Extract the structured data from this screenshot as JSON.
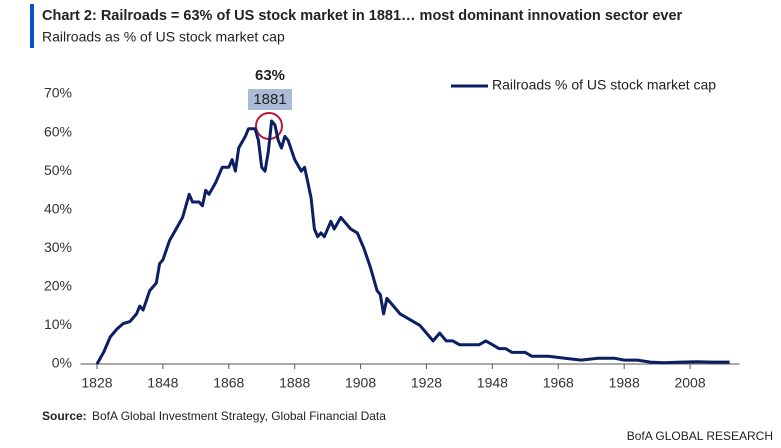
{
  "chart_data": {
    "type": "line",
    "title": "Chart 2: Railroads = 63% of US stock market in 1881… most dominant innovation sector ever",
    "subtitle": "Railroads as % of US stock market cap",
    "annotation": {
      "value_text": "63%",
      "year_text": "1881"
    },
    "source_label": "Source:",
    "source": "BofA Global Investment Strategy, Global Financial Data",
    "footer": "BofA GLOBAL RESEARCH",
    "legend": "upper right",
    "grid": false,
    "xlim": [
      1823,
      2023
    ],
    "ylim": [
      0,
      75
    ],
    "xticks": [
      1828,
      1848,
      1868,
      1888,
      1908,
      1928,
      1948,
      1968,
      1988,
      2008
    ],
    "yticks": [
      {
        "value": 0,
        "label": "0%"
      },
      {
        "value": 10,
        "label": "10%"
      },
      {
        "value": 20,
        "label": "20%"
      },
      {
        "value": 30,
        "label": "30%"
      },
      {
        "value": 40,
        "label": "40%"
      },
      {
        "value": 50,
        "label": "50%"
      },
      {
        "value": 60,
        "label": "60%"
      },
      {
        "value": 70,
        "label": "70%"
      }
    ],
    "x": [
      1828,
      1830,
      1832,
      1834,
      1836,
      1838,
      1840,
      1841,
      1842,
      1844,
      1846,
      1847,
      1848,
      1850,
      1852,
      1854,
      1856,
      1857,
      1859,
      1860,
      1861,
      1862,
      1864,
      1866,
      1868,
      1869,
      1870,
      1871,
      1873,
      1874,
      1876,
      1877,
      1878,
      1879,
      1880,
      1881,
      1882,
      1883,
      1884,
      1885,
      1886,
      1888,
      1890,
      1891,
      1892,
      1893,
      1894,
      1895,
      1896,
      1897,
      1899,
      1900,
      1902,
      1903,
      1905,
      1907,
      1909,
      1911,
      1913,
      1914,
      1915,
      1916,
      1918,
      1920,
      1922,
      1924,
      1926,
      1928,
      1930,
      1932,
      1934,
      1936,
      1938,
      1940,
      1944,
      1946,
      1948,
      1950,
      1952,
      1954,
      1958,
      1960,
      1965,
      1970,
      1975,
      1980,
      1985,
      1988,
      1992,
      1996,
      2000,
      2005,
      2010,
      2015,
      2020
    ],
    "series": [
      {
        "name": "Railroads % of US stock market cap",
        "color": "#0b1f63",
        "values": [
          0,
          3,
          7,
          9,
          10.5,
          11,
          13,
          15,
          14,
          19,
          21,
          26,
          27,
          32,
          35,
          38,
          44,
          42,
          42,
          41,
          45,
          44,
          47,
          51,
          51,
          53,
          50,
          56,
          59,
          61,
          61,
          58,
          51,
          50,
          55,
          63,
          62,
          58,
          56,
          59,
          58,
          53,
          50,
          51,
          47,
          43,
          35,
          33,
          34,
          33,
          37,
          35,
          38,
          37,
          35,
          34,
          30,
          25,
          19,
          18,
          13,
          17,
          15,
          13,
          12,
          11,
          10,
          8,
          6,
          8,
          6,
          6,
          5,
          5,
          5,
          6,
          5,
          4,
          4,
          3,
          3,
          2,
          2,
          1.5,
          1,
          1.5,
          1.5,
          1,
          1,
          0.5,
          0.3,
          0.5,
          0.6,
          0.5,
          0.5
        ]
      }
    ]
  }
}
